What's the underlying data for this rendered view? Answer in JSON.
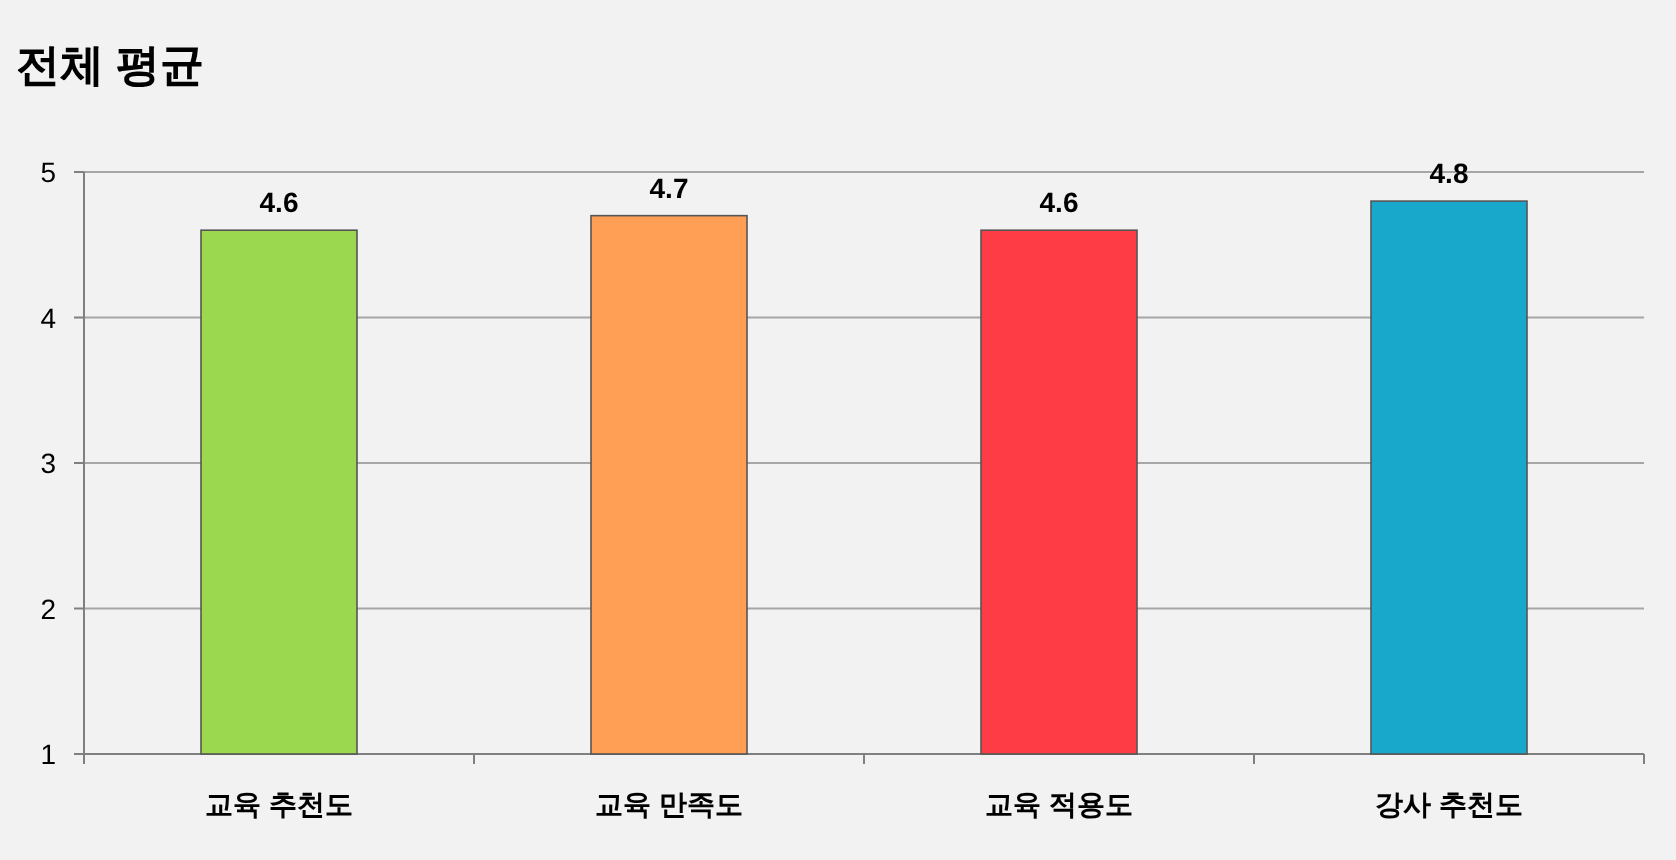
{
  "chart_data": {
    "type": "bar",
    "title": "전체 평균",
    "categories": [
      "교육 추천도",
      "교육 만족도",
      "교육 적용도",
      "강사 추천도"
    ],
    "values": [
      4.6,
      4.7,
      4.6,
      4.8
    ],
    "colors": [
      "#9bd84f",
      "#ff9f55",
      "#fd3c46",
      "#17a8cc"
    ],
    "ylim": [
      1,
      5
    ],
    "yticks": [
      1,
      2,
      3,
      4,
      5
    ],
    "grid": "y",
    "data_labels": true
  }
}
